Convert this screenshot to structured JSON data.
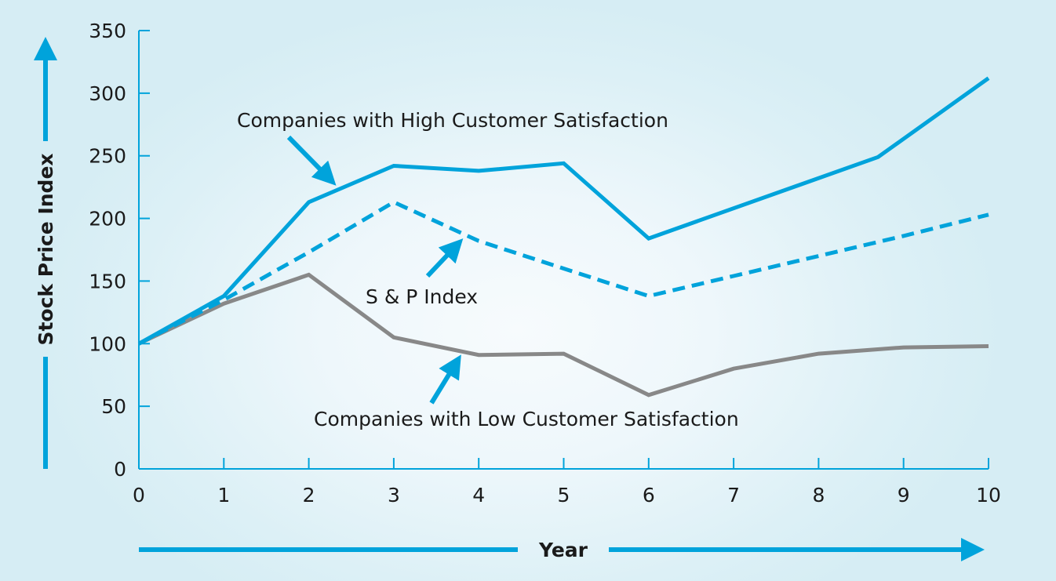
{
  "chart_data": {
    "type": "line",
    "title": "",
    "xlabel": "Year",
    "ylabel": "Stock Price Index",
    "xlim": [
      0,
      10
    ],
    "ylim": [
      0,
      350
    ],
    "grid": false,
    "x_ticks": [
      "0",
      "1",
      "2",
      "3",
      "4",
      "5",
      "6",
      "7",
      "8",
      "9",
      "10"
    ],
    "y_ticks": [
      "0",
      "50",
      "100",
      "150",
      "200",
      "250",
      "300",
      "350"
    ],
    "series": [
      {
        "name": "Companies with High Customer Satisfaction",
        "style": "solid",
        "color": "#00a3db",
        "x": [
          0,
          1,
          2,
          3,
          4,
          5,
          6,
          8.7,
          10
        ],
        "values": [
          100,
          138,
          213,
          242,
          238,
          244,
          184,
          249,
          312
        ]
      },
      {
        "name": "S & P Index",
        "style": "dashed",
        "color": "#00a3db",
        "x": [
          0,
          1,
          2,
          3,
          4,
          5,
          6,
          7,
          8,
          9,
          10
        ],
        "values": [
          100,
          135,
          173,
          213,
          182,
          160,
          138,
          154,
          170,
          186,
          203
        ]
      },
      {
        "name": "Companies with Low Customer Satisfaction",
        "style": "solid",
        "color": "#888888",
        "x": [
          0,
          1,
          2,
          3,
          4,
          5,
          6,
          7,
          8,
          9,
          10
        ],
        "values": [
          100,
          132,
          155,
          105,
          91,
          92,
          59,
          80,
          92,
          97,
          98
        ]
      }
    ],
    "annotations": [
      {
        "text": "Companies with High Customer Satisfaction",
        "points_to_series": 0
      },
      {
        "text": "S & P Index",
        "points_to_series": 1
      },
      {
        "text": "Companies with Low Customer Satisfaction",
        "points_to_series": 2
      }
    ],
    "colors": {
      "axis": "#00a3db",
      "text": "#1a1a1a"
    }
  }
}
